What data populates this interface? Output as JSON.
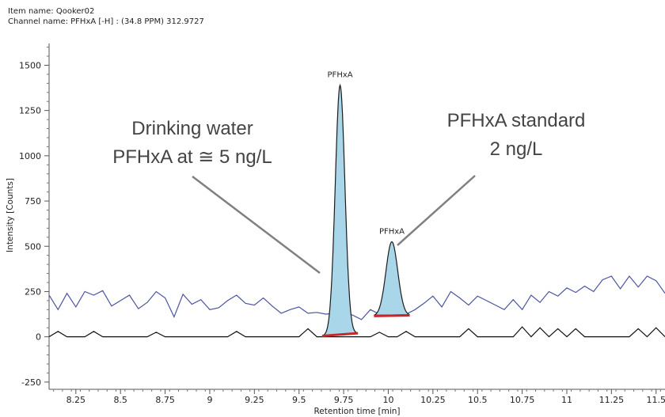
{
  "header": {
    "item_name": "Item name: Qooker02",
    "channel_name": "Channel name: PFHxA [-H] : (34.8 PPM) 312.9727"
  },
  "chart_data": {
    "type": "line",
    "xlabel": "Retention time [min]",
    "ylabel": "Intensity [Counts]",
    "xlim": [
      8.1,
      11.55
    ],
    "ylim": [
      -290,
      1620
    ],
    "x_ticks": [
      8.25,
      8.5,
      8.75,
      9,
      9.25,
      9.5,
      9.75,
      10,
      10.25,
      10.5,
      10.75,
      11,
      11.25,
      11.5
    ],
    "x_tick_labels": [
      "8.25",
      "8.5",
      "8.75",
      "9",
      "9.25",
      "9.5",
      "9.75",
      "10",
      "10.25",
      "10.5",
      "10.75",
      "11",
      "11.25",
      "11.5"
    ],
    "y_ticks": [
      -250,
      0,
      250,
      500,
      750,
      1000,
      1250,
      1500
    ],
    "y_tick_labels": [
      "-250",
      "0",
      "250",
      "500",
      "750",
      "1000",
      "1250",
      "1500"
    ],
    "peaks": [
      {
        "label": "PFHxA",
        "rt": 9.73,
        "height": 1390,
        "sigma": 0.027,
        "start": 9.63,
        "end": 9.83,
        "baseline_start": 5,
        "baseline_end": 20
      },
      {
        "label": "PFHxA",
        "rt": 10.02,
        "height": 525,
        "sigma": 0.033,
        "start": 9.92,
        "end": 10.12,
        "baseline_start": 115,
        "baseline_end": 118
      }
    ],
    "series": [
      {
        "color": "#4a55a0",
        "x": [
          8.1,
          8.15,
          8.2,
          8.25,
          8.3,
          8.35,
          8.4,
          8.45,
          8.5,
          8.55,
          8.6,
          8.65,
          8.7,
          8.75,
          8.8,
          8.85,
          8.9,
          8.95,
          9.0,
          9.05,
          9.1,
          9.15,
          9.2,
          9.25,
          9.3,
          9.35,
          9.4,
          9.45,
          9.5,
          9.55,
          9.6,
          9.65,
          9.7,
          9.75,
          9.8,
          9.85,
          9.9,
          9.95,
          10.0,
          10.05,
          10.1,
          10.15,
          10.2,
          10.25,
          10.3,
          10.35,
          10.4,
          10.45,
          10.5,
          10.55,
          10.6,
          10.65,
          10.7,
          10.75,
          10.8,
          10.85,
          10.9,
          10.95,
          11.0,
          11.05,
          11.1,
          11.15,
          11.2,
          11.25,
          11.3,
          11.35,
          11.4,
          11.45,
          11.5,
          11.55
        ],
        "y": [
          230,
          150,
          240,
          165,
          250,
          230,
          255,
          170,
          200,
          230,
          155,
          190,
          250,
          215,
          110,
          235,
          180,
          205,
          150,
          160,
          200,
          230,
          185,
          175,
          215,
          170,
          130,
          150,
          165,
          130,
          135,
          125,
          130,
          130,
          120,
          95,
          150,
          125,
          135,
          150,
          125,
          150,
          185,
          225,
          165,
          250,
          215,
          175,
          225,
          200,
          175,
          150,
          205,
          150,
          230,
          190,
          250,
          225,
          270,
          245,
          280,
          250,
          315,
          335,
          265,
          335,
          275,
          335,
          310,
          240
        ]
      },
      {
        "color": "#111111",
        "x": [
          8.1,
          8.15,
          8.2,
          8.25,
          8.3,
          8.35,
          8.4,
          8.45,
          8.5,
          8.55,
          8.6,
          8.65,
          8.7,
          8.75,
          8.8,
          8.85,
          8.9,
          8.95,
          9.0,
          9.05,
          9.1,
          9.15,
          9.2,
          9.25,
          9.3,
          9.35,
          9.4,
          9.45,
          9.5,
          9.55,
          9.6,
          9.65,
          9.7,
          9.75,
          9.8,
          9.85,
          9.9,
          9.95,
          10.0,
          10.05,
          10.1,
          10.15,
          10.2,
          10.25,
          10.3,
          10.35,
          10.4,
          10.45,
          10.5,
          10.55,
          10.6,
          10.65,
          10.7,
          10.75,
          10.8,
          10.85,
          10.9,
          10.95,
          11.0,
          11.05,
          11.1,
          11.15,
          11.2,
          11.25,
          11.3,
          11.35,
          11.4,
          11.45,
          11.5,
          11.55
        ],
        "y": [
          0,
          30,
          0,
          0,
          0,
          30,
          0,
          0,
          0,
          0,
          0,
          0,
          25,
          0,
          0,
          0,
          0,
          0,
          0,
          0,
          0,
          30,
          0,
          0,
          0,
          0,
          0,
          0,
          0,
          45,
          0,
          0,
          0,
          0,
          0,
          0,
          0,
          25,
          0,
          0,
          30,
          0,
          0,
          0,
          0,
          0,
          0,
          45,
          0,
          0,
          0,
          0,
          0,
          55,
          0,
          50,
          0,
          45,
          0,
          45,
          0,
          0,
          0,
          0,
          0,
          0,
          45,
          0,
          50,
          0
        ]
      }
    ],
    "peak_fill": "#a9d6e8",
    "baseline_marker_color": "#c62828",
    "annotations": [
      {
        "lines": [
          "Drinking water",
          "PFHxA at ≅ 5 ng/L"
        ]
      },
      {
        "lines": [
          "PFHxA standard",
          "2 ng/L"
        ]
      }
    ]
  }
}
